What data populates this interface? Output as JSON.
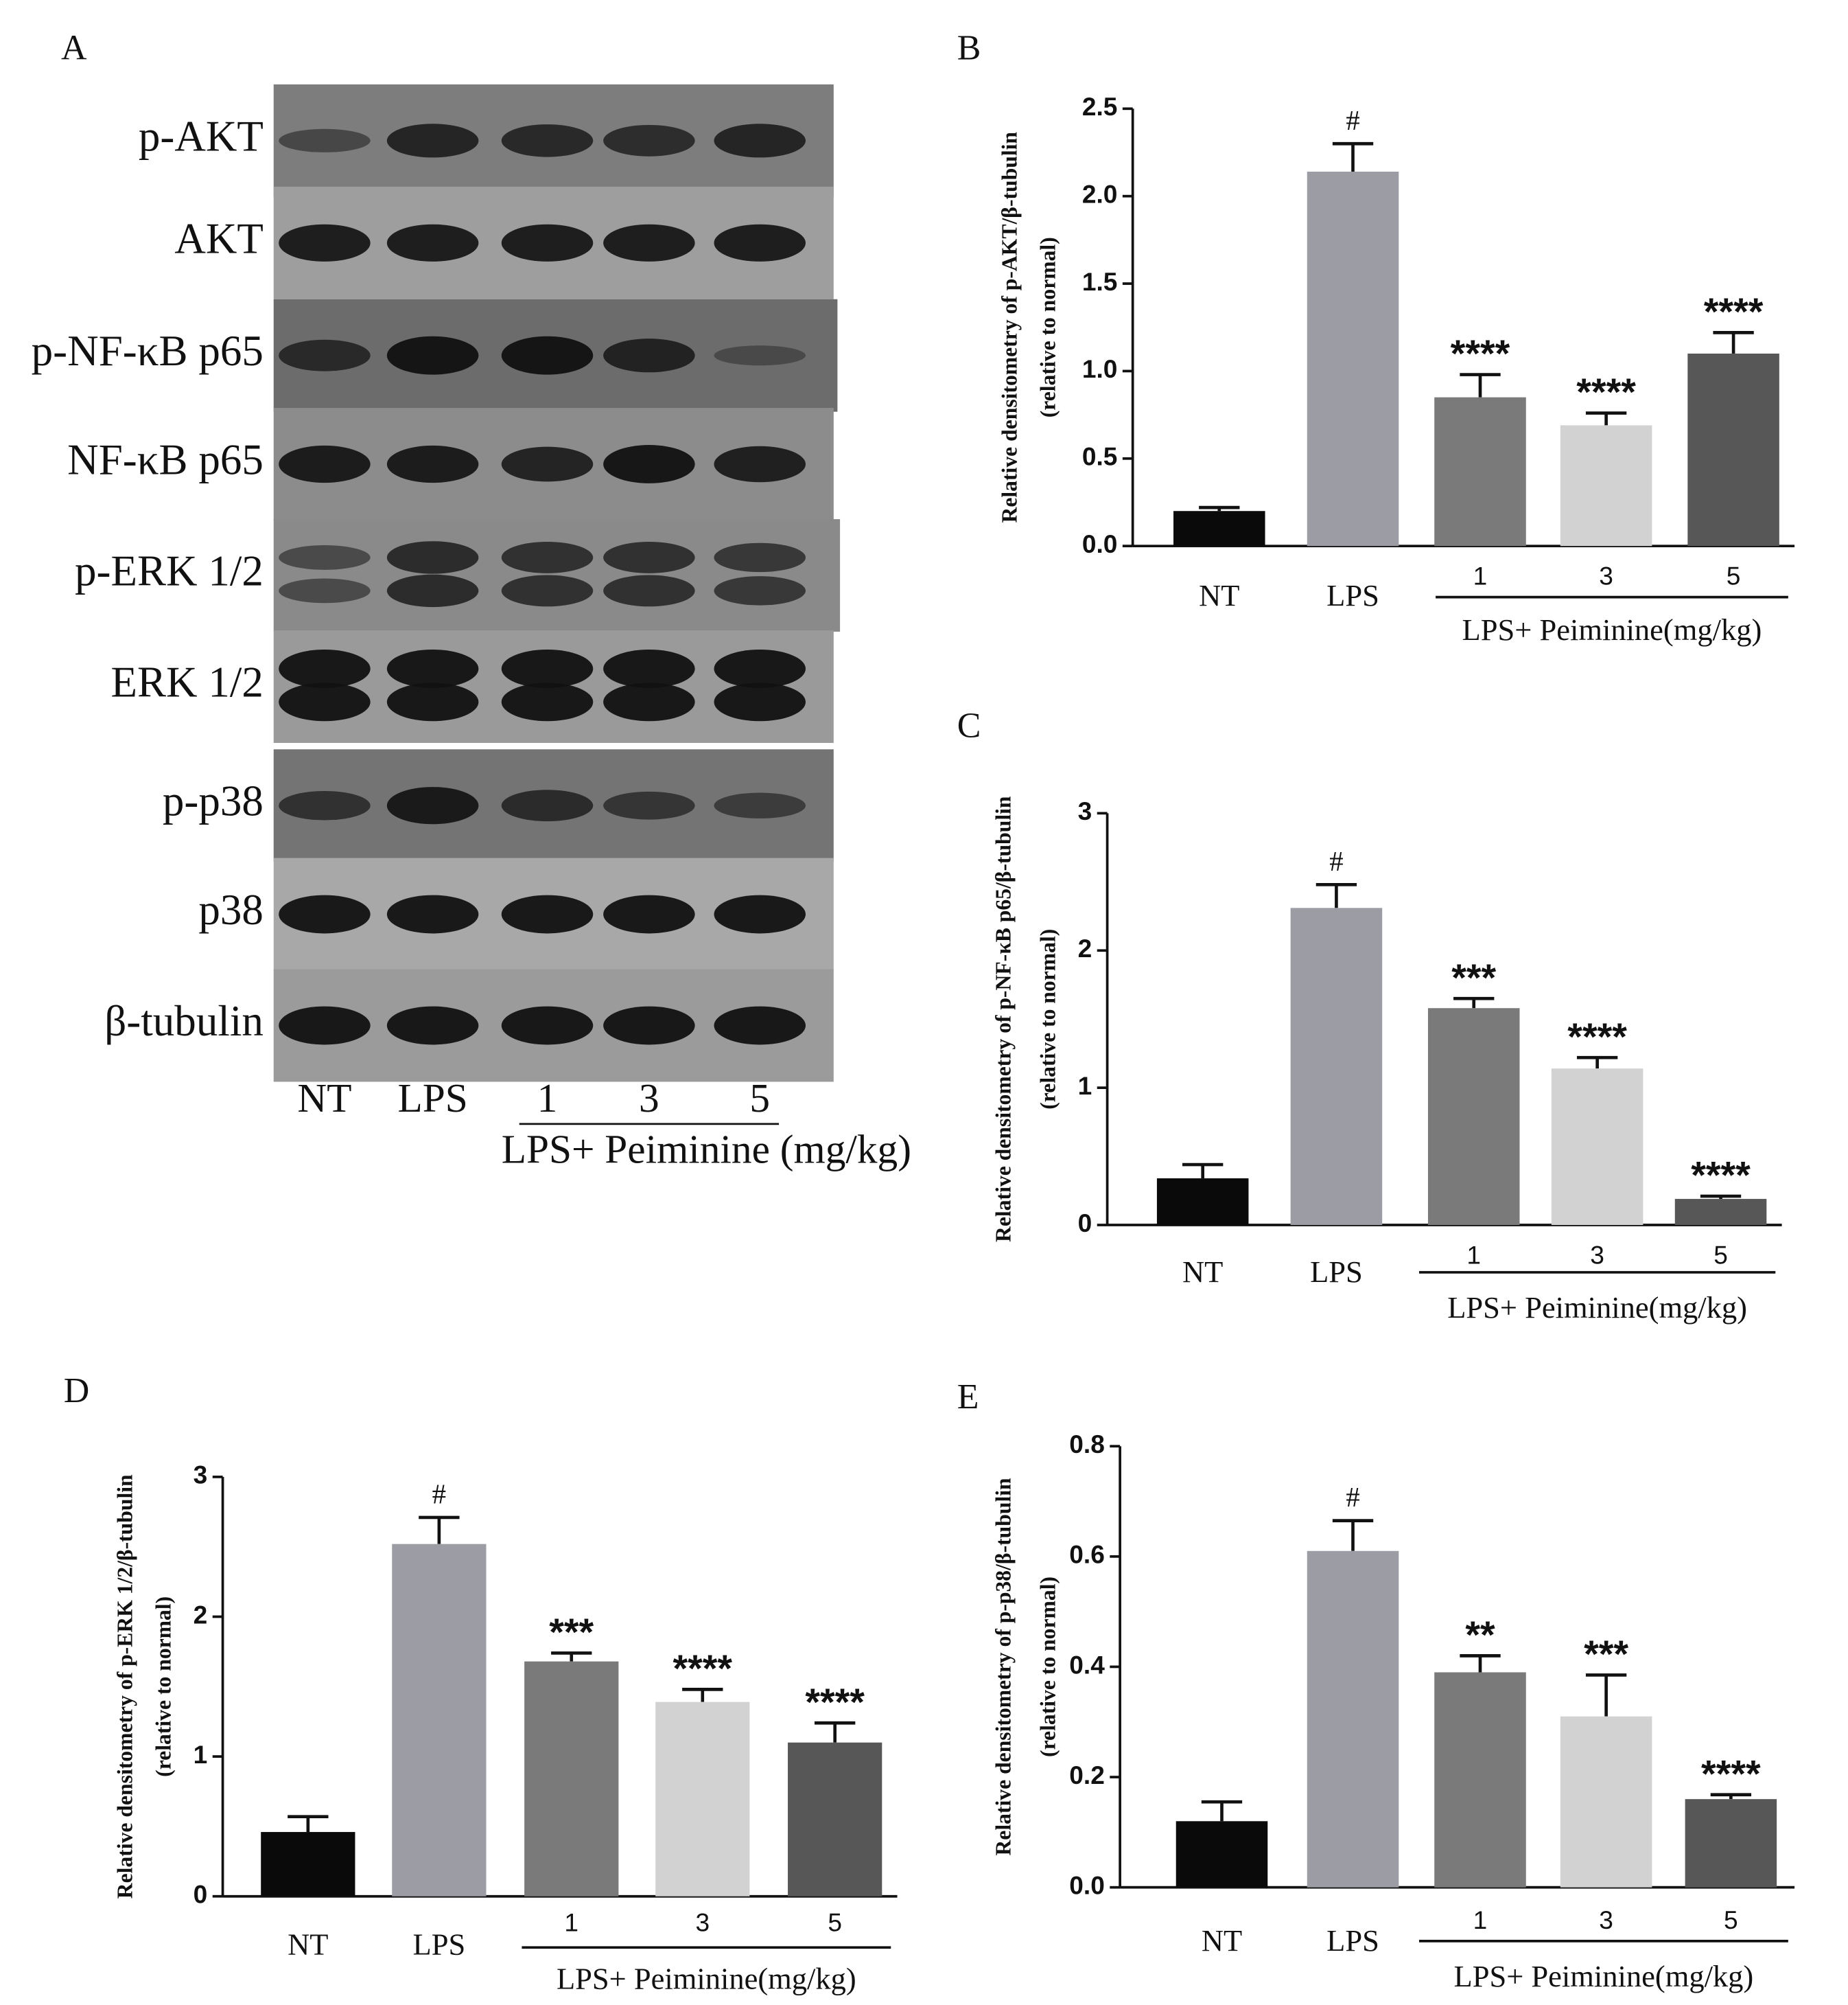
{
  "blot": {
    "label": "A",
    "rows": [
      "p-AKT",
      "AKT",
      "p-NF-κB p65",
      "NF-κB p65",
      "p-ERK 1/2",
      "ERK 1/2",
      "p-p38",
      "p38",
      "β-tubulin"
    ],
    "lanes": [
      "NT",
      "LPS",
      "1",
      "3",
      "5"
    ],
    "group_label": "LPS+ Peiminine (mg/kg)"
  },
  "chart_data": [
    {
      "type": "bar",
      "label": "B",
      "y_label": [
        "Relative densitometry of p-AKT/β-tubulin",
        "(relative to normal)"
      ],
      "categories": [
        "NT",
        "LPS",
        "1",
        "3",
        "5"
      ],
      "group_label": "LPS+ Peiminine(mg/kg)",
      "values": [
        0.2,
        2.14,
        0.85,
        0.69,
        1.1
      ],
      "errors": [
        0.02,
        0.16,
        0.13,
        0.07,
        0.12
      ],
      "annotations": [
        null,
        "#",
        "****",
        "****",
        "****"
      ],
      "colors": [
        "#0a0a0a",
        "#9c9ca4",
        "#7a7a7a",
        "#d2d2d2",
        "#575757"
      ],
      "ylim": [
        0,
        2.5
      ],
      "yticks": [
        {
          "value": 0,
          "label": "0.0"
        },
        0.5,
        {
          "value": 1,
          "label": "1.0"
        },
        1.5,
        {
          "value": 2,
          "label": "2.0"
        },
        2.5
      ]
    },
    {
      "type": "bar",
      "label": "C",
      "y_label": [
        "Relative densitometry of p-NF-κB p65/β-tubulin",
        "(relative to normal)"
      ],
      "categories": [
        "NT",
        "LPS",
        "1",
        "3",
        "5"
      ],
      "group_label": "LPS+ Peiminine(mg/kg)",
      "values": [
        0.34,
        2.31,
        1.58,
        1.14,
        0.19
      ],
      "errors": [
        0.1,
        0.17,
        0.07,
        0.08,
        0.02
      ],
      "annotations": [
        null,
        "#",
        "***",
        "****",
        "****"
      ],
      "colors": [
        "#0a0a0a",
        "#9c9ca4",
        "#7a7a7a",
        "#d2d2d2",
        "#575757"
      ],
      "ylim": [
        0,
        3
      ],
      "yticks": [
        0,
        1,
        2,
        3
      ]
    },
    {
      "type": "bar",
      "label": "D",
      "y_label": [
        "Relative densitometry of p-ERK 1/2/β-tubulin",
        "(relative to normal)"
      ],
      "categories": [
        "NT",
        "LPS",
        "1",
        "3",
        "5"
      ],
      "group_label": "LPS+ Peiminine(mg/kg)",
      "values": [
        0.46,
        2.52,
        1.68,
        1.39,
        1.1
      ],
      "errors": [
        0.11,
        0.19,
        0.06,
        0.09,
        0.14
      ],
      "annotations": [
        null,
        "#",
        "***",
        "****",
        "****"
      ],
      "colors": [
        "#0a0a0a",
        "#9c9ca4",
        "#7a7a7a",
        "#d2d2d2",
        "#575757"
      ],
      "ylim": [
        0,
        3
      ],
      "yticks": [
        0,
        1,
        2,
        3
      ]
    },
    {
      "type": "bar",
      "label": "E",
      "y_label": [
        "Relative densitometry of p-p38/β-tubulin",
        "(relative to normal)"
      ],
      "categories": [
        "NT",
        "LPS",
        "1",
        "3",
        "5"
      ],
      "group_label": "LPS+ Peiminine(mg/kg)",
      "values": [
        0.12,
        0.61,
        0.39,
        0.31,
        0.16
      ],
      "errors": [
        0.035,
        0.055,
        0.03,
        0.075,
        0.008
      ],
      "annotations": [
        null,
        "#",
        "**",
        "***",
        "****"
      ],
      "colors": [
        "#0a0a0a",
        "#9c9ca4",
        "#7a7a7a",
        "#d2d2d2",
        "#575757"
      ],
      "ylim": [
        0,
        0.8
      ],
      "yticks": [
        {
          "value": 0,
          "label": "0.0"
        },
        0.2,
        0.4,
        0.6,
        0.8
      ]
    }
  ]
}
